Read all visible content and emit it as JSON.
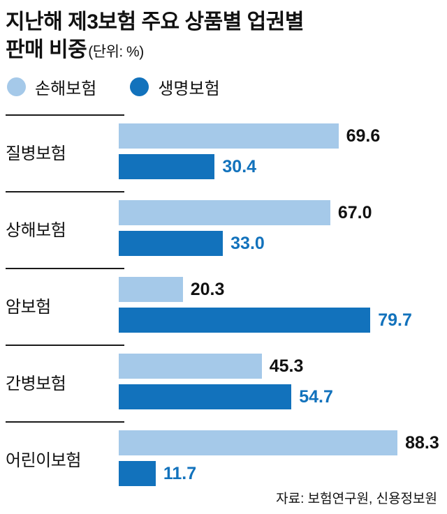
{
  "title": {
    "line1": "지난해 제3보험 주요 상품별 업권별",
    "line2": "판매 비중",
    "unit": "(단위: %)"
  },
  "source": "자료: 보험연구원, 신용정보원",
  "colors": {
    "light_blue": "#A5C9E9",
    "dark_blue": "#1272BC",
    "divider": "#1A1A1A",
    "text": "#111111"
  },
  "chart_data": {
    "type": "bar",
    "orientation": "horizontal",
    "unit": "%",
    "xlim": [
      0,
      100
    ],
    "grid": false,
    "legend_position": "top-left",
    "categories": [
      "질병보험",
      "상해보험",
      "암보험",
      "간병보험",
      "어린이보험"
    ],
    "series": [
      {
        "name": "손해보험",
        "color": "#A5C9E9",
        "values": [
          69.6,
          67.0,
          20.3,
          45.3,
          88.3
        ],
        "labels": [
          "69.6",
          "67.0",
          "20.3",
          "45.3",
          "88.3"
        ]
      },
      {
        "name": "생명보험",
        "color": "#1272BC",
        "values": [
          30.4,
          33.0,
          79.7,
          54.7,
          11.7
        ],
        "labels": [
          "30.4",
          "33.0",
          "79.7",
          "54.7",
          "11.7"
        ]
      }
    ]
  }
}
